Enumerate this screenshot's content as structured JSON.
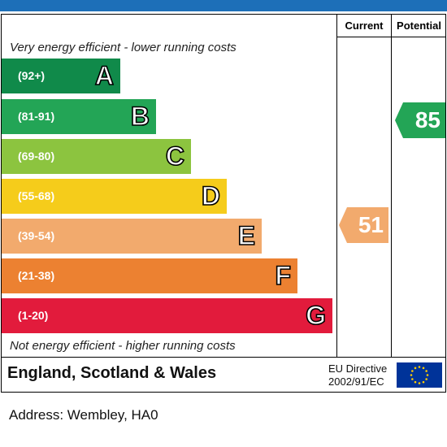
{
  "header": {
    "current_label": "Current",
    "potential_label": "Potential"
  },
  "captions": {
    "top": "Very energy efficient - lower running costs",
    "bottom": "Not energy efficient - higher running costs"
  },
  "footer": {
    "country": "England, Scotland & Wales",
    "directive_line1": "EU Directive",
    "directive_line2": "2002/91/EC"
  },
  "address": "Address: Wembley, HA0",
  "chart_data": {
    "type": "bar",
    "bands": [
      {
        "range": "(92+)",
        "letter": "A",
        "color": "#108a4a"
      },
      {
        "range": "(81-91)",
        "letter": "B",
        "color": "#23a556"
      },
      {
        "range": "(69-80)",
        "letter": "C",
        "color": "#8cc43f"
      },
      {
        "range": "(55-68)",
        "letter": "D",
        "color": "#f5cc1b"
      },
      {
        "range": "(39-54)",
        "letter": "E",
        "color": "#f2aa6d"
      },
      {
        "range": "(21-38)",
        "letter": "F",
        "color": "#ec8131"
      },
      {
        "range": "(1-20)",
        "letter": "G",
        "color": "#e21b3c"
      }
    ],
    "current": {
      "value": 51,
      "band": "E",
      "color": "#f2aa6d"
    },
    "potential": {
      "value": 85,
      "band": "B",
      "color": "#23a556"
    }
  }
}
